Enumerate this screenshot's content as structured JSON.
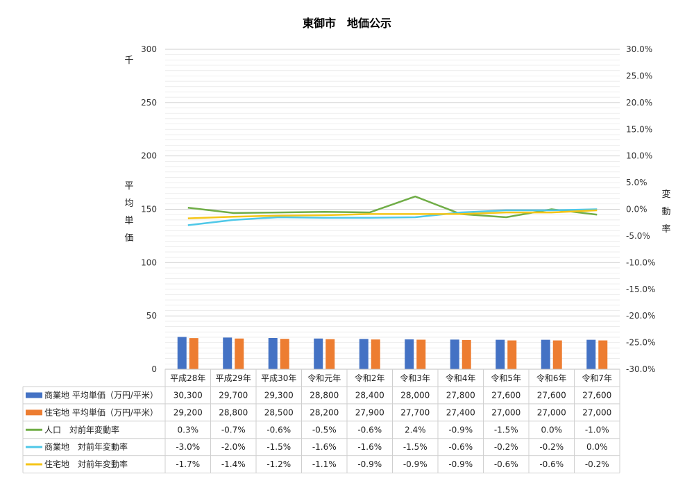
{
  "chart_data": {
    "type": "bar",
    "title": "東御市　地価公示",
    "categories": [
      "平成28年",
      "平成29年",
      "平成30年",
      "令和元年",
      "令和2年",
      "令和3年",
      "令和4年",
      "令和5年",
      "令和6年",
      "令和7年"
    ],
    "y_left": {
      "unit": "千",
      "label": [
        "平",
        "均",
        "単",
        "価"
      ],
      "ylim": [
        0,
        300
      ],
      "ticks": [
        "0",
        "50",
        "100",
        "150",
        "200",
        "250",
        "300"
      ]
    },
    "y_right": {
      "label": [
        "変",
        "動",
        "率"
      ],
      "ylim": [
        -30,
        30
      ],
      "ticks": [
        "-30.0%",
        "-25.0%",
        "-20.0%",
        "-15.0%",
        "-10.0%",
        "-5.0%",
        "0.0%",
        "5.0%",
        "10.0%",
        "15.0%",
        "20.0%",
        "25.0%",
        "30.0%"
      ]
    },
    "series": [
      {
        "name": "商業地 平均単価（万円/平米）",
        "type": "bar",
        "axis": "left",
        "color": "#4472C4",
        "values": [
          30300,
          29700,
          29300,
          28800,
          28400,
          28000,
          27800,
          27600,
          27600,
          27600
        ],
        "labels": [
          "30,300",
          "29,700",
          "29,300",
          "28,800",
          "28,400",
          "28,000",
          "27,800",
          "27,600",
          "27,600",
          "27,600"
        ]
      },
      {
        "name": "住宅地 平均単価（万円/平米）",
        "type": "bar",
        "axis": "left",
        "color": "#ED7D31",
        "values": [
          29200,
          28800,
          28500,
          28200,
          27900,
          27700,
          27400,
          27000,
          27000,
          27000
        ],
        "labels": [
          "29,200",
          "28,800",
          "28,500",
          "28,200",
          "27,900",
          "27,700",
          "27,400",
          "27,000",
          "27,000",
          "27,000"
        ]
      },
      {
        "name": "人口　対前年変動率",
        "type": "line",
        "axis": "right",
        "color": "#70AD47",
        "values": [
          0.3,
          -0.7,
          -0.6,
          -0.5,
          -0.6,
          2.4,
          -0.9,
          -1.5,
          0.0,
          -1.0
        ],
        "labels": [
          "0.3%",
          "-0.7%",
          "-0.6%",
          "-0.5%",
          "-0.6%",
          "2.4%",
          "-0.9%",
          "-1.5%",
          "0.0%",
          "-1.0%"
        ]
      },
      {
        "name": "商業地　対前年変動率",
        "type": "line",
        "axis": "right",
        "color": "#4FC8E8",
        "values": [
          -3.0,
          -2.0,
          -1.5,
          -1.6,
          -1.6,
          -1.5,
          -0.6,
          -0.2,
          -0.2,
          0.0
        ],
        "labels": [
          "-3.0%",
          "-2.0%",
          "-1.5%",
          "-1.6%",
          "-1.6%",
          "-1.5%",
          "-0.6%",
          "-0.2%",
          "-0.2%",
          "0.0%"
        ]
      },
      {
        "name": "住宅地　対前年変動率",
        "type": "line",
        "axis": "right",
        "color": "#F5C518",
        "values": [
          -1.7,
          -1.4,
          -1.2,
          -1.1,
          -0.9,
          -0.9,
          -0.9,
          -0.6,
          -0.6,
          -0.2
        ],
        "labels": [
          "-1.7%",
          "-1.4%",
          "-1.2%",
          "-1.1%",
          "-0.9%",
          "-0.9%",
          "-0.9%",
          "-0.6%",
          "-0.6%",
          "-0.2%"
        ]
      }
    ],
    "grid": true,
    "legend": "data-table"
  }
}
